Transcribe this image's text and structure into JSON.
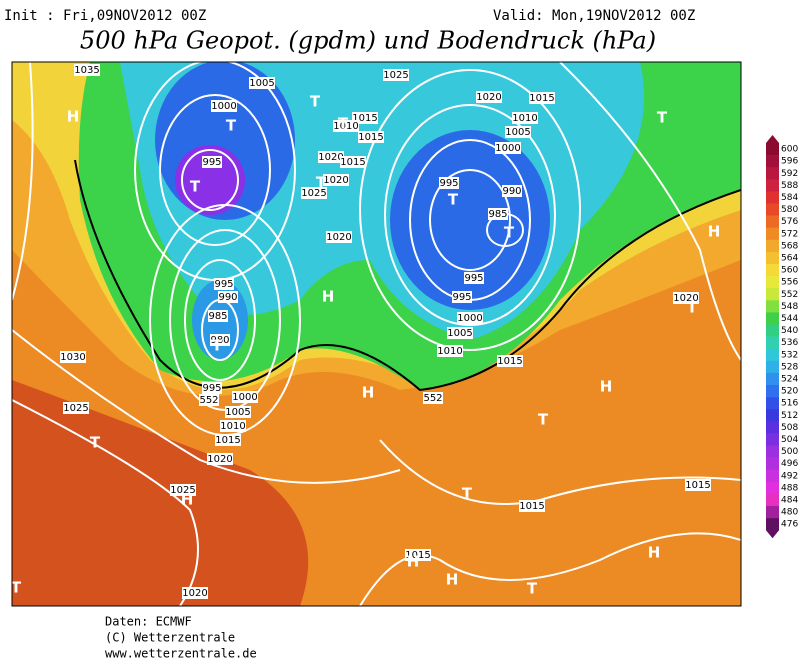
{
  "header": {
    "init": "Init : Fri,09NOV2012 00Z",
    "valid": "Valid: Mon,19NOV2012 00Z",
    "title": "500 hPa Geopot. (gpdm) und Bodendruck (hPa)"
  },
  "legend": {
    "labels": [
      600,
      596,
      592,
      588,
      584,
      580,
      576,
      572,
      568,
      564,
      560,
      556,
      552,
      548,
      544,
      540,
      536,
      532,
      528,
      524,
      520,
      516,
      512,
      508,
      504,
      500,
      496,
      492,
      488,
      484,
      480,
      476
    ]
  },
  "map": {
    "isobar_labels": [
      "1035",
      "1005",
      "1025",
      "1020",
      "1015",
      "1000",
      "1015",
      "1010",
      "1015",
      "1010",
      "1005",
      "1000",
      "995",
      "1020",
      "1015",
      "1020",
      "1025",
      "995",
      "990",
      "985",
      "1020",
      "995",
      "990",
      "985",
      "980",
      "995",
      "995",
      "1000",
      "1005",
      "1010",
      "1030",
      "1020",
      "995",
      "1000",
      "1005",
      "1010",
      "1015",
      "1020",
      "1025",
      "1015",
      "1015",
      "1025",
      "1015",
      "1015",
      "1020",
      "552",
      "552"
    ],
    "pressure_centers": [
      "H",
      "T",
      "T",
      "T",
      "T",
      "T",
      "T",
      "T",
      "T",
      "H",
      "H",
      "T",
      "H",
      "T",
      "H",
      "T",
      "T",
      "H",
      "T",
      "H",
      "H",
      "H",
      "T",
      "T"
    ]
  },
  "footer": {
    "lines": [
      "Daten: ECMWF",
      "(C) Wetterzentrale",
      "www.wetterzentrale.de"
    ]
  }
}
